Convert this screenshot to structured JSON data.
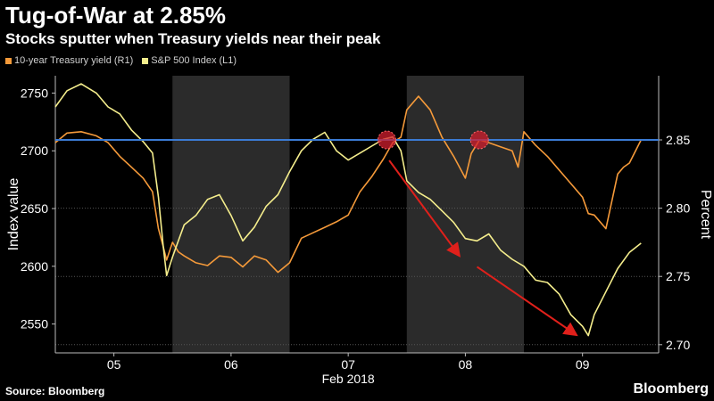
{
  "chart_data": {
    "type": "line",
    "title": "Tug-of-War at 2.85%",
    "subtitle": "Stocks sputter when Treasury yields near their peak",
    "source": "Source: Bloomberg",
    "brand": "Bloomberg",
    "xlabel": "Feb 2018",
    "x_ticks": [
      "05",
      "06",
      "07",
      "08",
      "09"
    ],
    "ylabel_left": "Index value",
    "ylabel_right": "Percent",
    "y_left_ticks": [
      2750,
      2700,
      2650,
      2600,
      2550
    ],
    "y_left_lim": [
      2525,
      2765
    ],
    "y_right_ticks": [
      "2.85",
      "2.80",
      "2.75",
      "2.70"
    ],
    "y_right_lim": [
      2.694,
      2.897
    ],
    "x_lim": [
      4.5,
      9.65
    ],
    "shaded_ranges": [
      [
        5.5,
        6.5
      ],
      [
        7.5,
        8.5
      ]
    ],
    "reference_line": {
      "value": 2.85,
      "axis": "right",
      "color": "#3b7bd4"
    },
    "highlight_points": [
      {
        "x": 7.33,
        "y": 2.85
      },
      {
        "x": 8.12,
        "y": 2.85
      }
    ],
    "arrows": [
      {
        "from": [
          7.35,
          2.835
        ],
        "to": [
          7.95,
          2.765
        ]
      },
      {
        "from": [
          8.1,
          2.757
        ],
        "to": [
          8.95,
          2.707
        ]
      }
    ],
    "series": [
      {
        "name": "10-year Treasury yield (R1)",
        "axis": "right",
        "color": "#f59a3a",
        "x": [
          4.5,
          4.6,
          4.72,
          4.85,
          4.95,
          5.05,
          5.15,
          5.25,
          5.33,
          5.38,
          5.42,
          5.45,
          5.5,
          5.55,
          5.6,
          5.7,
          5.8,
          5.9,
          6.0,
          6.1,
          6.2,
          6.3,
          6.4,
          6.5,
          6.6,
          6.7,
          6.8,
          6.9,
          7.0,
          7.1,
          7.2,
          7.3,
          7.38,
          7.45,
          7.5,
          7.6,
          7.7,
          7.8,
          7.9,
          8.0,
          8.05,
          8.12,
          8.2,
          8.3,
          8.4,
          8.45,
          8.5,
          8.6,
          8.7,
          8.8,
          8.9,
          9.0,
          9.05,
          9.1,
          9.2,
          9.3,
          9.35,
          9.4,
          9.5
        ],
        "values": [
          2.848,
          2.855,
          2.856,
          2.853,
          2.848,
          2.838,
          2.83,
          2.822,
          2.812,
          2.785,
          2.772,
          2.762,
          2.775,
          2.768,
          2.765,
          2.76,
          2.758,
          2.765,
          2.764,
          2.757,
          2.765,
          2.762,
          2.753,
          2.76,
          2.778,
          2.782,
          2.786,
          2.79,
          2.795,
          2.812,
          2.823,
          2.836,
          2.848,
          2.852,
          2.872,
          2.882,
          2.872,
          2.852,
          2.838,
          2.822,
          2.84,
          2.85,
          2.848,
          2.845,
          2.842,
          2.83,
          2.856,
          2.846,
          2.838,
          2.828,
          2.818,
          2.808,
          2.796,
          2.795,
          2.785,
          2.825,
          2.83,
          2.833,
          2.85
        ]
      },
      {
        "name": "S&P 500 Index (L1)",
        "axis": "left",
        "color": "#f4ed8c",
        "x": [
          4.5,
          4.6,
          4.72,
          4.85,
          4.95,
          5.05,
          5.15,
          5.25,
          5.33,
          5.38,
          5.42,
          5.45,
          5.5,
          5.55,
          5.6,
          5.7,
          5.8,
          5.9,
          6.0,
          6.1,
          6.2,
          6.3,
          6.4,
          6.5,
          6.6,
          6.7,
          6.8,
          6.9,
          7.0,
          7.1,
          7.2,
          7.3,
          7.38,
          7.45,
          7.5,
          7.6,
          7.7,
          7.8,
          7.9,
          8.0,
          8.1,
          8.2,
          8.3,
          8.4,
          8.5,
          8.6,
          8.7,
          8.8,
          8.9,
          9.0,
          9.05,
          9.1,
          9.2,
          9.3,
          9.4,
          9.5
        ],
        "values": [
          2738,
          2752,
          2758,
          2750,
          2738,
          2732,
          2718,
          2708,
          2698,
          2660,
          2618,
          2592,
          2608,
          2622,
          2636,
          2644,
          2658,
          2662,
          2644,
          2622,
          2634,
          2652,
          2662,
          2682,
          2700,
          2710,
          2716,
          2700,
          2692,
          2698,
          2704,
          2710,
          2712,
          2700,
          2674,
          2664,
          2658,
          2648,
          2638,
          2624,
          2622,
          2628,
          2614,
          2606,
          2600,
          2588,
          2586,
          2576,
          2558,
          2548,
          2540,
          2558,
          2578,
          2598,
          2612,
          2620
        ]
      }
    ]
  }
}
